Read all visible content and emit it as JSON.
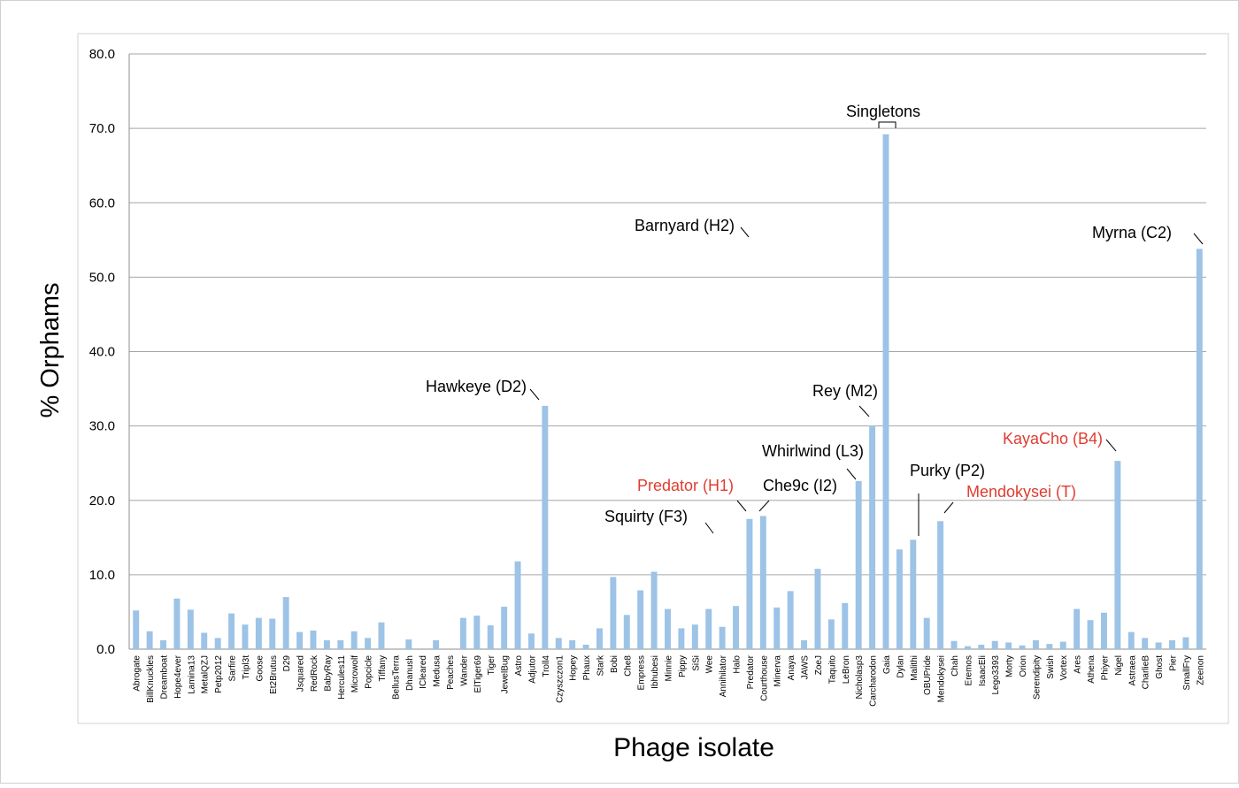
{
  "chart_data": {
    "type": "bar",
    "xlabel": "Phage isolate",
    "ylabel": "% Orphams",
    "ylim": [
      0,
      80
    ],
    "yticks": [
      "0.0",
      "10.0",
      "20.0",
      "30.0",
      "40.0",
      "50.0",
      "60.0",
      "70.0",
      "80.0"
    ],
    "grid": true,
    "bar_color": "#9dc3e6",
    "categories": [
      "Abrogate",
      "BillKnuckles",
      "Dreamboat",
      "Hope4ever",
      "Lamina13",
      "MetalQZJ",
      "Petp2012",
      "Sarfire",
      "Tripl3t",
      "Goose",
      "Et2Brutus",
      "D29",
      "Jsquared",
      "RedRock",
      "BabyRay",
      "Hercules11",
      "Microwolf",
      "Popcicle",
      "Tiffany",
      "BellusTerra",
      "Dhanush",
      "ICleared",
      "Medusa",
      "Peaches",
      "Wander",
      "ElTiger69",
      "Tiger",
      "JewelBug",
      "Astro",
      "Adjutor",
      "Troll4",
      "Czyszczon1",
      "Hopey",
      "Phaux",
      "Stark",
      "Bobi",
      "Che8",
      "Empress",
      "Ibhubesi",
      "Minnie",
      "Pippy",
      "SiSi",
      "Wee",
      "Annihilator",
      "Halo",
      "Predator",
      "Courthouse",
      "Minerva",
      "Anaya",
      "JAWS",
      "ZoeJ",
      "Taquito",
      "LeBron",
      "Nicholasp3",
      "Carcharodon",
      "Gaia",
      "Dylan",
      "Malithi",
      "OBUPride",
      "Mendokysei",
      "Chah",
      "Eremos",
      "IsaacEli",
      "Lego3393",
      "Morty",
      "Orion",
      "Serendipity",
      "Swish",
      "Vortex",
      "Ares",
      "Athena",
      "Phiyer",
      "Nigel",
      "Astraea",
      "CharlieB",
      "Ghost",
      "Pier",
      "SmallFry",
      "Zeenon"
    ],
    "values": [
      5.2,
      2.4,
      1.2,
      6.8,
      5.3,
      2.2,
      1.5,
      4.8,
      3.3,
      4.2,
      4.1,
      7.0,
      2.3,
      2.5,
      1.2,
      1.2,
      2.4,
      1.5,
      3.6,
      0,
      1.3,
      0,
      1.2,
      0,
      4.2,
      4.5,
      3.2,
      5.7,
      11.8,
      2.1,
      32.7,
      1.5,
      1.2,
      0.6,
      2.8,
      9.7,
      4.6,
      7.9,
      10.4,
      5.4,
      2.8,
      3.3,
      5.4,
      3.0,
      5.8,
      17.5,
      17.9,
      5.6,
      7.8,
      1.2,
      10.8,
      4.0,
      6.2,
      22.6,
      30.0,
      69.2,
      13.4,
      14.7,
      4.2,
      17.2,
      1.1,
      0.4,
      0.6,
      1.1,
      0.9,
      0.5,
      1.2,
      0.7,
      1.0,
      5.4,
      3.9,
      4.9,
      25.3,
      2.3,
      1.5,
      0.9,
      1.2,
      1.6,
      53.8
    ],
    "annotations": [
      {
        "text": "Singletons",
        "color": "#000000"
      },
      {
        "text": "Barnyard (H2)",
        "color": "#000000"
      },
      {
        "text": "Myrna (C2)",
        "color": "#000000"
      },
      {
        "text": "Hawkeye (D2)",
        "color": "#000000"
      },
      {
        "text": "Rey (M2)",
        "color": "#000000"
      },
      {
        "text": "Whirlwind (L3)",
        "color": "#000000"
      },
      {
        "text": "KayaCho (B4)",
        "color": "#e03c31"
      },
      {
        "text": "Purky (P2)",
        "color": "#000000"
      },
      {
        "text": "Predator (H1)",
        "color": "#e03c31"
      },
      {
        "text": "Che9c (I2)",
        "color": "#000000"
      },
      {
        "text": "Mendokysei (T)",
        "color": "#e03c31"
      },
      {
        "text": "Squirty (F3)",
        "color": "#000000"
      }
    ]
  }
}
